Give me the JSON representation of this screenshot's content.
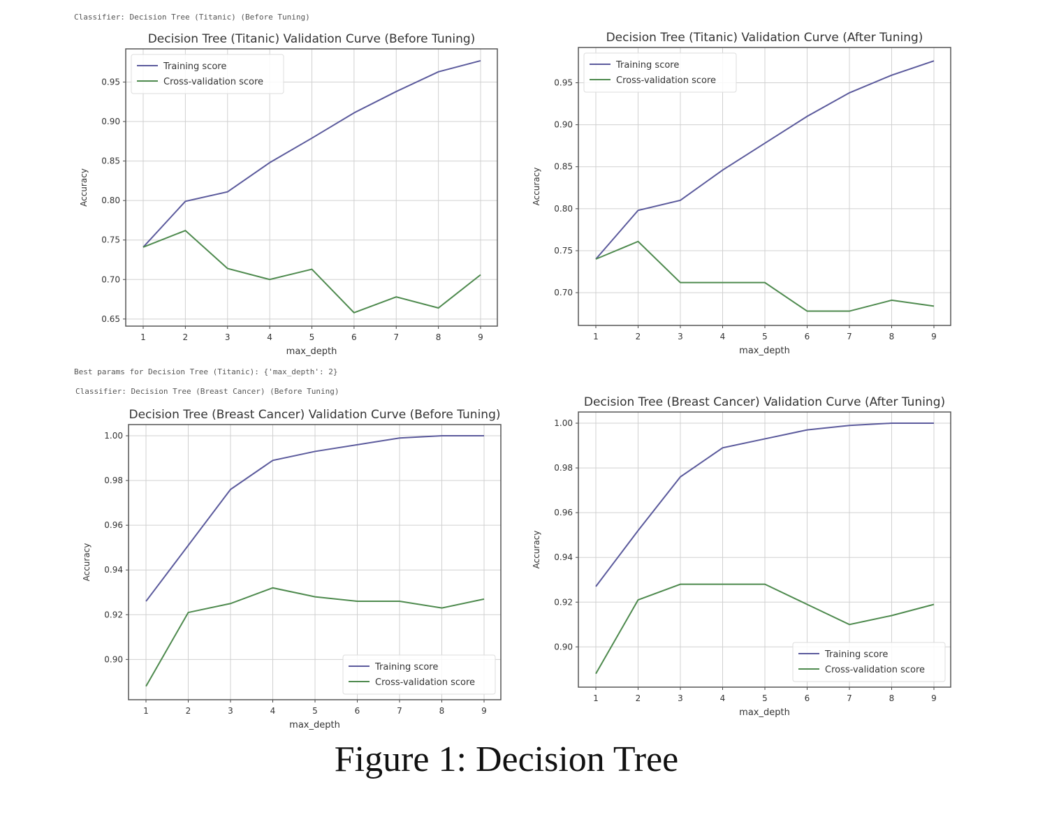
{
  "logs": {
    "classifier_titanic": "Classifier: Decision Tree (Titanic) (Before Tuning)",
    "best_params_titanic": "Best params for Decision Tree (Titanic): {'max_depth': 2}",
    "classifier_bc": "Classifier: Decision Tree (Breast Cancer) (Before Tuning)"
  },
  "caption": "Figure 1: Decision Tree",
  "colors": {
    "training": "#5b5a9c",
    "cv": "#4e8a4e",
    "grid": "#d0d0d0"
  },
  "chart_data": [
    {
      "type": "line",
      "title": "Decision Tree (Titanic) Validation Curve (Before Tuning)",
      "xlabel": "max_depth",
      "ylabel": "Accuracy",
      "x": [
        1,
        2,
        3,
        4,
        5,
        6,
        7,
        8,
        9
      ],
      "xticks": [
        "1",
        "2",
        "3",
        "4",
        "5",
        "6",
        "7",
        "8",
        "9"
      ],
      "yticks": [
        "0.65",
        "0.70",
        "0.75",
        "0.80",
        "0.85",
        "0.90",
        "0.95"
      ],
      "ylim": [
        0.641,
        0.992
      ],
      "grid": true,
      "legend": "upper-left",
      "series": [
        {
          "name": "Training score",
          "values": [
            0.741,
            0.799,
            0.811,
            0.848,
            0.879,
            0.911,
            0.938,
            0.963,
            0.977
          ]
        },
        {
          "name": "Cross-validation score",
          "values": [
            0.741,
            0.762,
            0.714,
            0.7,
            0.713,
            0.658,
            0.678,
            0.664,
            0.706
          ]
        }
      ]
    },
    {
      "type": "line",
      "title": "Decision Tree (Titanic) Validation Curve (After Tuning)",
      "xlabel": "max_depth",
      "ylabel": "Accuracy",
      "x": [
        1,
        2,
        3,
        4,
        5,
        6,
        7,
        8,
        9
      ],
      "xticks": [
        "1",
        "2",
        "3",
        "4",
        "5",
        "6",
        "7",
        "8",
        "9"
      ],
      "yticks": [
        "0.70",
        "0.75",
        "0.80",
        "0.85",
        "0.90",
        "0.95"
      ],
      "ylim": [
        0.661,
        0.992
      ],
      "grid": true,
      "legend": "upper-left",
      "series": [
        {
          "name": "Training score",
          "values": [
            0.74,
            0.798,
            0.81,
            0.846,
            0.878,
            0.91,
            0.938,
            0.959,
            0.976
          ]
        },
        {
          "name": "Cross-validation score",
          "values": [
            0.74,
            0.761,
            0.712,
            0.712,
            0.712,
            0.678,
            0.678,
            0.691,
            0.684
          ]
        }
      ]
    },
    {
      "type": "line",
      "title": "Decision Tree (Breast Cancer) Validation Curve (Before Tuning)",
      "xlabel": "max_depth",
      "ylabel": "Accuracy",
      "x": [
        1,
        2,
        3,
        4,
        5,
        6,
        7,
        8,
        9
      ],
      "xticks": [
        "1",
        "2",
        "3",
        "4",
        "5",
        "6",
        "7",
        "8",
        "9"
      ],
      "yticks": [
        "0.90",
        "0.92",
        "0.94",
        "0.96",
        "0.98",
        "1.00"
      ],
      "ylim": [
        0.882,
        1.005
      ],
      "grid": true,
      "legend": "lower-right",
      "series": [
        {
          "name": "Training score",
          "values": [
            0.926,
            0.951,
            0.976,
            0.989,
            0.993,
            0.996,
            0.999,
            1.0,
            1.0
          ]
        },
        {
          "name": "Cross-validation score",
          "values": [
            0.888,
            0.921,
            0.925,
            0.932,
            0.928,
            0.926,
            0.926,
            0.923,
            0.927
          ]
        }
      ]
    },
    {
      "type": "line",
      "title": "Decision Tree (Breast Cancer) Validation Curve (After Tuning)",
      "xlabel": "max_depth",
      "ylabel": "Accuracy",
      "x": [
        1,
        2,
        3,
        4,
        5,
        6,
        7,
        8,
        9
      ],
      "xticks": [
        "1",
        "2",
        "3",
        "4",
        "5",
        "6",
        "7",
        "8",
        "9"
      ],
      "yticks": [
        "0.90",
        "0.92",
        "0.94",
        "0.96",
        "0.98",
        "1.00"
      ],
      "ylim": [
        0.882,
        1.005
      ],
      "grid": true,
      "legend": "lower-right",
      "series": [
        {
          "name": "Training score",
          "values": [
            0.927,
            0.952,
            0.976,
            0.989,
            0.993,
            0.997,
            0.999,
            1.0,
            1.0
          ]
        },
        {
          "name": "Cross-validation score",
          "values": [
            0.888,
            0.921,
            0.928,
            0.928,
            0.928,
            0.919,
            0.91,
            0.914,
            0.919
          ]
        }
      ]
    }
  ]
}
